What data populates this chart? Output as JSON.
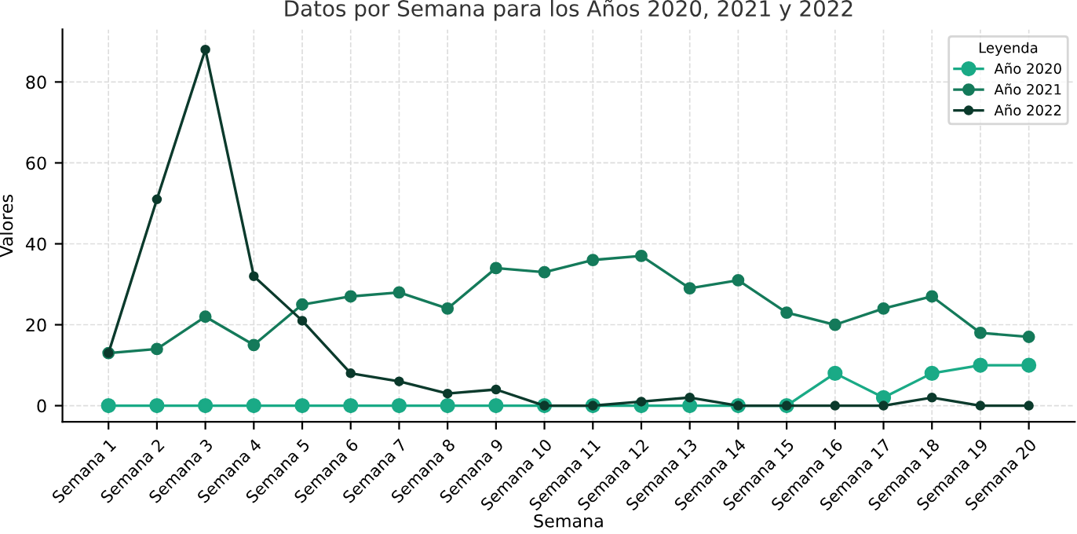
{
  "chart_data": {
    "type": "line",
    "title": "Datos por Semana para los Años 2020, 2021 y 2022",
    "xlabel": "Semana",
    "ylabel": "Valores",
    "legend_title": "Leyenda",
    "categories": [
      "Semana 1",
      "Semana 2",
      "Semana 3",
      "Semana 4",
      "Semana 5",
      "Semana 6",
      "Semana 7",
      "Semana 8",
      "Semana 9",
      "Semana 10",
      "Semana 11",
      "Semana 12",
      "Semana 13",
      "Semana 14",
      "Semana 15",
      "Semana 16",
      "Semana 17",
      "Semana 18",
      "Semana 19",
      "Semana 20"
    ],
    "series": [
      {
        "name": "Año 2020",
        "color": "#1aaa86",
        "values": [
          0,
          0,
          0,
          0,
          0,
          0,
          0,
          0,
          0,
          0,
          0,
          0,
          0,
          0,
          0,
          8,
          2,
          8,
          10,
          10
        ]
      },
      {
        "name": "Año 2021",
        "color": "#147a5a",
        "values": [
          13,
          14,
          22,
          15,
          25,
          27,
          28,
          24,
          34,
          33,
          36,
          37,
          29,
          31,
          23,
          20,
          24,
          27,
          18,
          17
        ]
      },
      {
        "name": "Año 2022",
        "color": "#0b3a2c",
        "values": [
          13,
          51,
          88,
          32,
          21,
          8,
          6,
          3,
          4,
          0,
          0,
          1,
          2,
          0,
          0,
          0,
          0,
          2,
          0,
          0
        ]
      }
    ],
    "ylim": [
      -4,
      93
    ],
    "yticks": [
      0,
      20,
      40,
      60,
      80
    ],
    "grid": true,
    "legend": "top right",
    "marker": "circle",
    "line_style": "solid"
  }
}
